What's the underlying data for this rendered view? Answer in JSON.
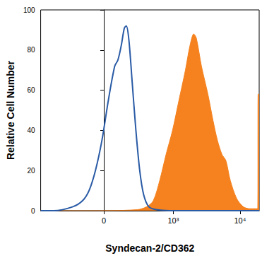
{
  "chart_data": {
    "type": "line",
    "xlabel": "Syndecan-2/CD362",
    "ylabel": "Relative Cell Number",
    "xlim": [
      -800,
      19300
    ],
    "xticks": [
      0,
      {
        "value": 1000,
        "label": "10³"
      },
      {
        "value": 10000,
        "label": "10⁴"
      }
    ],
    "ylim": [
      0,
      100
    ],
    "yticks": [
      0,
      20,
      40,
      60,
      80,
      100
    ],
    "grid": false,
    "series": [
      {
        "type": "line",
        "color": "#2a5ba6",
        "x": [
          -800,
          -501,
          -235,
          -147,
          -98,
          -54,
          -12,
          29,
          71,
          93,
          117,
          142,
          158,
          180,
          209,
          248,
          291,
          340,
          414,
          549,
          870,
          19300
        ],
        "values": [
          0,
          0,
          2,
          5,
          10,
          20,
          35,
          55,
          72,
          75,
          82,
          91,
          92,
          85,
          65,
          40,
          20,
          8,
          2,
          0.5,
          0,
          0
        ]
      },
      {
        "type": "area",
        "color": "#f5821f",
        "x": [
          -800,
          -98,
          262,
          384,
          490,
          618,
          775,
          973,
          1217,
          1523,
          1777,
          2031,
          2220,
          2650,
          3310,
          3945,
          4600,
          5375,
          6140,
          7160,
          8930,
          11140,
          13880,
          16940,
          18400,
          18600,
          19300
        ],
        "values": [
          0,
          0,
          0.5,
          2,
          5,
          15,
          28,
          40,
          55,
          70,
          82,
          88,
          86,
          72,
          58,
          45,
          35,
          28,
          25,
          15,
          6,
          2,
          1,
          1,
          1,
          58,
          58
        ]
      }
    ]
  }
}
